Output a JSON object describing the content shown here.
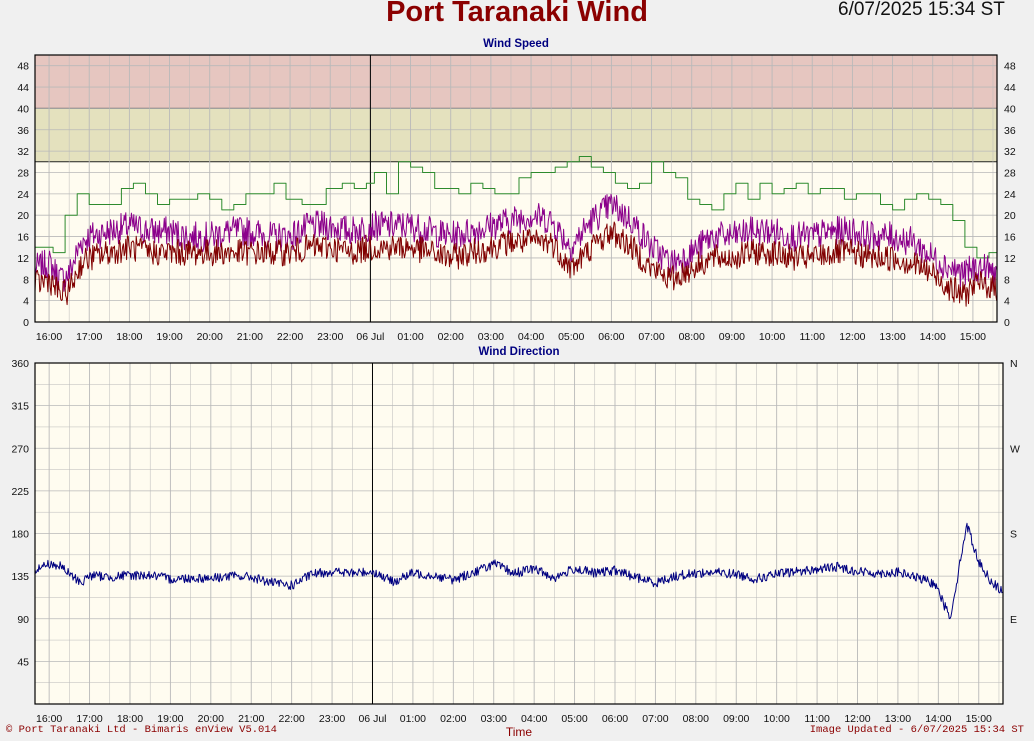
{
  "header": {
    "title": "Port Taranaki Wind",
    "timestamp": "6/07/2025 15:34 ST"
  },
  "footer": {
    "left": "© Port Taranaki Ltd - Bimaris enView V5.014",
    "right": "Image Updated - 6/07/2025 15:34 ST"
  },
  "colors": {
    "title": "#8b0000",
    "plot_bg": "#fffcf0",
    "band_high": "#e6c6c0",
    "band_mid": "#e4e1be",
    "grid": "#b9b9b9",
    "gust": "#2e8b2e",
    "speed_avg": "#800000",
    "speed_max": "#8b008b",
    "direction": "#000080"
  },
  "chart_data": [
    {
      "type": "line",
      "title": "Wind Speed",
      "xlabel": "",
      "ylabel": "",
      "x_ticks": [
        "16:00",
        "17:00",
        "18:00",
        "19:00",
        "20:00",
        "21:00",
        "22:00",
        "23:00",
        "06 Jul",
        "01:00",
        "02:00",
        "03:00",
        "04:00",
        "05:00",
        "06:00",
        "07:00",
        "08:00",
        "09:00",
        "10:00",
        "11:00",
        "12:00",
        "13:00",
        "14:00",
        "15:00"
      ],
      "x_range_hours": [
        -0.35,
        23.6
      ],
      "ylim": [
        0,
        50
      ],
      "y_ticks": [
        0,
        4,
        8,
        12,
        16,
        20,
        24,
        28,
        32,
        36,
        40,
        44,
        48
      ],
      "bands": [
        {
          "from": 30,
          "to": 40,
          "color": "#e4e1be"
        },
        {
          "from": 40,
          "to": 50,
          "color": "#e6c6c0"
        }
      ],
      "day_marker_hour": 8,
      "grid": true,
      "series": [
        {
          "color": "#2e8b2e",
          "x_hours": [
            -0.35,
            -0.1,
            0.1,
            0.4,
            0.7,
            1.0,
            1.4,
            1.8,
            2.1,
            2.4,
            2.7,
            3.0,
            3.3,
            3.7,
            4.0,
            4.3,
            4.6,
            4.9,
            5.3,
            5.6,
            5.9,
            6.3,
            6.6,
            6.9,
            7.3,
            7.6,
            7.9,
            8.1,
            8.4,
            8.7,
            9.0,
            9.3,
            9.6,
            9.9,
            10.2,
            10.5,
            10.8,
            11.1,
            11.4,
            11.7,
            12.0,
            12.3,
            12.6,
            12.9,
            13.2,
            13.5,
            13.8,
            14.1,
            14.4,
            14.7,
            15.0,
            15.3,
            15.6,
            15.9,
            16.2,
            16.5,
            16.8,
            17.1,
            17.4,
            17.7,
            18.0,
            18.3,
            18.6,
            18.9,
            19.2,
            19.5,
            19.8,
            20.1,
            20.4,
            20.7,
            21.0,
            21.3,
            21.6,
            21.9,
            22.2,
            22.5,
            22.8,
            23.1,
            23.4,
            23.6
          ],
          "y": [
            14,
            14,
            13,
            20,
            24,
            22,
            22,
            25,
            26,
            24,
            22,
            23,
            23,
            24,
            23,
            21,
            22,
            24,
            24,
            26,
            23,
            22,
            22,
            25,
            26,
            25,
            26,
            28,
            24,
            30,
            29,
            28,
            25,
            25,
            24,
            26,
            25,
            24,
            24,
            27,
            28,
            28,
            29,
            30,
            31,
            29,
            28,
            26,
            25,
            26,
            30,
            28,
            27,
            23,
            22,
            21,
            24,
            26,
            23,
            26,
            24,
            25,
            26,
            24,
            25,
            25,
            23,
            24,
            24,
            22,
            21,
            23,
            24,
            23,
            22,
            19,
            14,
            12,
            13,
            12
          ]
        },
        {
          "color": "#8b008b",
          "x_hours": [
            -0.35,
            0.0,
            0.3,
            0.5,
            0.8,
            1.0,
            1.5,
            2.0,
            2.5,
            3.0,
            3.5,
            4.0,
            4.5,
            5.0,
            5.5,
            6.0,
            6.5,
            7.0,
            7.5,
            8.0,
            8.5,
            9.0,
            9.5,
            10.0,
            10.5,
            11.0,
            11.5,
            12.0,
            12.5,
            13.0,
            13.5,
            14.0,
            14.5,
            15.0,
            15.5,
            16.0,
            16.5,
            17.0,
            17.5,
            18.0,
            18.5,
            19.0,
            19.5,
            20.0,
            20.5,
            21.0,
            21.5,
            22.0,
            22.5,
            22.8,
            23.0,
            23.3,
            23.6
          ],
          "y": [
            10,
            11,
            8,
            9,
            15,
            16,
            17,
            18,
            17,
            17,
            16,
            16,
            17,
            17,
            16,
            16,
            18,
            18,
            17,
            18,
            18,
            18,
            17,
            16,
            17,
            18,
            19,
            20,
            19,
            14,
            19,
            22,
            19,
            14,
            11,
            13,
            16,
            16,
            17,
            17,
            16,
            16,
            17,
            17,
            16,
            16,
            15,
            12,
            10,
            9,
            10,
            10,
            9
          ]
        },
        {
          "color": "#800000",
          "x_hours": [
            -0.35,
            0.0,
            0.3,
            0.5,
            0.8,
            1.0,
            1.5,
            2.0,
            2.5,
            3.0,
            3.5,
            4.0,
            4.5,
            5.0,
            5.5,
            6.0,
            6.5,
            7.0,
            7.5,
            8.0,
            8.5,
            9.0,
            9.5,
            10.0,
            10.5,
            11.0,
            11.5,
            12.0,
            12.5,
            13.0,
            13.5,
            14.0,
            14.5,
            15.0,
            15.5,
            16.0,
            16.5,
            17.0,
            17.5,
            18.0,
            18.5,
            19.0,
            19.5,
            20.0,
            20.5,
            21.0,
            21.5,
            22.0,
            22.5,
            22.8,
            23.0,
            23.3,
            23.6
          ],
          "y": [
            7,
            8,
            5,
            6,
            11,
            12,
            13,
            14,
            13,
            13,
            13,
            13,
            13,
            13,
            13,
            13,
            14,
            14,
            13,
            14,
            14,
            14,
            13,
            12,
            13,
            14,
            15,
            15,
            15,
            10,
            14,
            17,
            14,
            10,
            8,
            10,
            12,
            12,
            13,
            13,
            12,
            12,
            13,
            13,
            12,
            12,
            11,
            9,
            6,
            5,
            7,
            7,
            6
          ]
        }
      ]
    },
    {
      "type": "line",
      "title": "Wind Direction",
      "xlabel": "Time",
      "ylabel": "",
      "x_ticks": [
        "16:00",
        "17:00",
        "18:00",
        "19:00",
        "20:00",
        "21:00",
        "22:00",
        "23:00",
        "06 Jul",
        "01:00",
        "02:00",
        "03:00",
        "04:00",
        "05:00",
        "06:00",
        "07:00",
        "08:00",
        "09:00",
        "10:00",
        "11:00",
        "12:00",
        "13:00",
        "14:00",
        "15:00"
      ],
      "x_range_hours": [
        -0.35,
        23.6
      ],
      "ylim": [
        0,
        360
      ],
      "y_ticks": [
        45,
        90,
        135,
        180,
        225,
        270,
        315,
        360
      ],
      "compass_labels": [
        {
          "label": "N",
          "value": 360
        },
        {
          "label": "W",
          "value": 270
        },
        {
          "label": "S",
          "value": 180
        },
        {
          "label": "E",
          "value": 90
        }
      ],
      "day_marker_hour": 8,
      "grid": true,
      "series": [
        {
          "color": "#000080",
          "x_hours": [
            -0.35,
            0.0,
            0.3,
            0.5,
            0.8,
            1.0,
            1.5,
            2.0,
            2.5,
            3.0,
            3.5,
            4.0,
            4.5,
            5.0,
            5.5,
            6.0,
            6.5,
            7.0,
            7.5,
            8.0,
            8.5,
            9.0,
            9.5,
            10.0,
            10.5,
            11.0,
            11.5,
            12.0,
            12.5,
            13.0,
            13.5,
            14.0,
            14.5,
            15.0,
            15.5,
            16.0,
            16.5,
            17.0,
            17.5,
            18.0,
            18.5,
            19.0,
            19.5,
            20.0,
            20.5,
            21.0,
            21.5,
            22.0,
            22.1,
            22.3,
            22.5,
            22.7,
            23.0,
            23.3,
            23.6
          ],
          "y": [
            142,
            148,
            145,
            137,
            128,
            136,
            134,
            136,
            136,
            132,
            133,
            133,
            135,
            134,
            128,
            125,
            137,
            140,
            138,
            140,
            129,
            138,
            136,
            131,
            139,
            148,
            138,
            143,
            133,
            143,
            138,
            141,
            134,
            128,
            135,
            138,
            139,
            137,
            132,
            137,
            140,
            142,
            145,
            140,
            138,
            139,
            133,
            125,
            108,
            92,
            140,
            190,
            150,
            130,
            118
          ]
        }
      ]
    }
  ]
}
